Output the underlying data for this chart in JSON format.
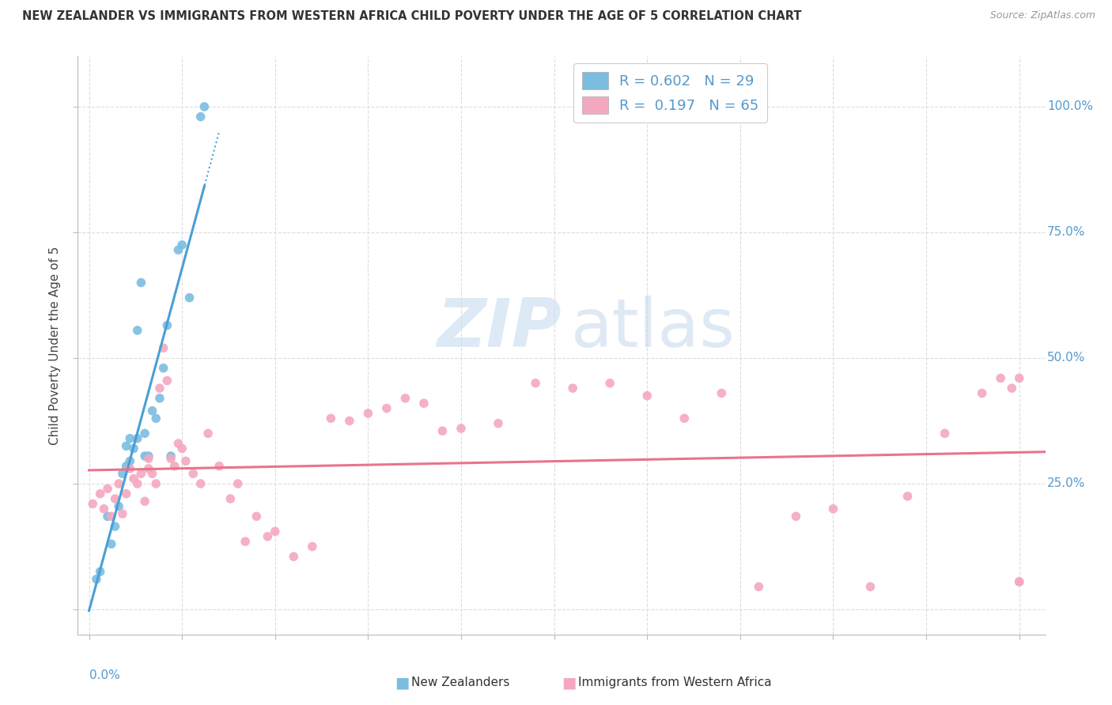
{
  "title": "NEW ZEALANDER VS IMMIGRANTS FROM WESTERN AFRICA CHILD POVERTY UNDER THE AGE OF 5 CORRELATION CHART",
  "source": "Source: ZipAtlas.com",
  "ylabel": "Child Poverty Under the Age of 5",
  "legend_blue_r": "R = 0.602",
  "legend_blue_n": "N = 29",
  "legend_pink_r": "R =  0.197",
  "legend_pink_n": "N = 65",
  "blue_color": "#7bbde0",
  "pink_color": "#f4a8c0",
  "trendline_blue": "#4a9fd4",
  "trendline_pink": "#e8748c",
  "background_color": "#ffffff",
  "grid_color": "#dddddd",
  "xmin": 0.0,
  "xmax": 0.25,
  "ymin": 0.0,
  "ymax": 1.0,
  "nz_x": [
    0.002,
    0.003,
    0.005,
    0.006,
    0.007,
    0.008,
    0.009,
    0.01,
    0.01,
    0.011,
    0.011,
    0.012,
    0.013,
    0.013,
    0.014,
    0.015,
    0.015,
    0.016,
    0.017,
    0.018,
    0.019,
    0.02,
    0.021,
    0.022,
    0.024,
    0.025,
    0.027,
    0.03,
    0.031
  ],
  "nz_y": [
    0.06,
    0.075,
    0.185,
    0.13,
    0.165,
    0.205,
    0.27,
    0.285,
    0.325,
    0.295,
    0.34,
    0.32,
    0.555,
    0.34,
    0.65,
    0.305,
    0.35,
    0.305,
    0.395,
    0.38,
    0.42,
    0.48,
    0.565,
    0.305,
    0.715,
    0.725,
    0.62,
    0.98,
    1.0
  ],
  "wa_x": [
    0.001,
    0.003,
    0.004,
    0.005,
    0.006,
    0.007,
    0.008,
    0.009,
    0.01,
    0.011,
    0.012,
    0.013,
    0.014,
    0.015,
    0.016,
    0.016,
    0.017,
    0.018,
    0.019,
    0.02,
    0.021,
    0.022,
    0.023,
    0.024,
    0.025,
    0.026,
    0.028,
    0.03,
    0.032,
    0.035,
    0.038,
    0.04,
    0.042,
    0.045,
    0.048,
    0.05,
    0.055,
    0.06,
    0.065,
    0.07,
    0.075,
    0.08,
    0.085,
    0.09,
    0.095,
    0.1,
    0.11,
    0.12,
    0.13,
    0.14,
    0.15,
    0.16,
    0.17,
    0.18,
    0.19,
    0.2,
    0.21,
    0.22,
    0.23,
    0.24,
    0.245,
    0.248,
    0.25,
    0.25,
    0.25
  ],
  "wa_y": [
    0.21,
    0.23,
    0.2,
    0.24,
    0.185,
    0.22,
    0.25,
    0.19,
    0.23,
    0.28,
    0.26,
    0.25,
    0.27,
    0.215,
    0.28,
    0.3,
    0.27,
    0.25,
    0.44,
    0.52,
    0.455,
    0.3,
    0.285,
    0.33,
    0.32,
    0.295,
    0.27,
    0.25,
    0.35,
    0.285,
    0.22,
    0.25,
    0.135,
    0.185,
    0.145,
    0.155,
    0.105,
    0.125,
    0.38,
    0.375,
    0.39,
    0.4,
    0.42,
    0.41,
    0.355,
    0.36,
    0.37,
    0.45,
    0.44,
    0.45,
    0.425,
    0.38,
    0.43,
    0.045,
    0.185,
    0.2,
    0.045,
    0.225,
    0.35,
    0.43,
    0.46,
    0.44,
    0.055,
    0.055,
    0.46
  ]
}
